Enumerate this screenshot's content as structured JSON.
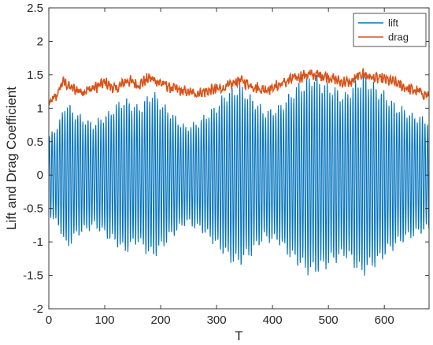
{
  "chart_data": {
    "type": "line",
    "xlabel": "T",
    "ylabel": "Lift and Drag Coefficient",
    "xlim": [
      0,
      680
    ],
    "ylim": [
      -2,
      2.5
    ],
    "xticks": [
      0,
      100,
      200,
      300,
      400,
      500,
      600
    ],
    "yticks": [
      -2,
      -1.5,
      -1,
      -0.5,
      0,
      0.5,
      1,
      1.5,
      2,
      2.5
    ],
    "xtick_labels": [
      "0",
      "100",
      "200",
      "300",
      "400",
      "500",
      "600"
    ],
    "ytick_labels": [
      "-2",
      "-1.5",
      "-1",
      "-0.5",
      "0",
      "0.5",
      "1",
      "1.5",
      "2",
      "2.5"
    ],
    "grid": false,
    "legend_position": "top-right",
    "series": [
      {
        "name": "lift",
        "color": "#0072BD",
        "oscillation_period": 4.6,
        "mean": 0.0,
        "envelope": {
          "x": [
            0,
            20,
            30,
            50,
            80,
            110,
            135,
            160,
            185,
            215,
            245,
            270,
            295,
            320,
            340,
            365,
            385,
            410,
            440,
            470,
            500,
            530,
            560,
            590,
            620,
            650,
            680
          ],
          "amplitude": [
            0.6,
            0.85,
            1.15,
            0.95,
            0.8,
            1.0,
            1.2,
            1.05,
            1.3,
            1.0,
            0.75,
            0.85,
            1.05,
            1.3,
            1.4,
            1.2,
            1.0,
            1.05,
            1.35,
            1.55,
            1.4,
            1.25,
            1.55,
            1.35,
            1.1,
            0.95,
            0.85
          ]
        }
      },
      {
        "name": "drag",
        "color": "#D95319",
        "mean_curve": {
          "x": [
            0,
            15,
            25,
            40,
            60,
            80,
            100,
            120,
            140,
            160,
            180,
            200,
            220,
            240,
            260,
            280,
            300,
            320,
            340,
            360,
            380,
            400,
            420,
            440,
            460,
            480,
            500,
            520,
            540,
            560,
            580,
            600,
            620,
            640,
            660,
            680
          ],
          "y": [
            1.05,
            1.2,
            1.4,
            1.3,
            1.25,
            1.3,
            1.38,
            1.28,
            1.42,
            1.35,
            1.45,
            1.38,
            1.3,
            1.25,
            1.22,
            1.25,
            1.28,
            1.32,
            1.42,
            1.35,
            1.28,
            1.3,
            1.38,
            1.45,
            1.5,
            1.5,
            1.47,
            1.4,
            1.38,
            1.52,
            1.45,
            1.43,
            1.38,
            1.3,
            1.25,
            1.18
          ]
        },
        "oscillation_amplitude": 0.07
      }
    ]
  }
}
